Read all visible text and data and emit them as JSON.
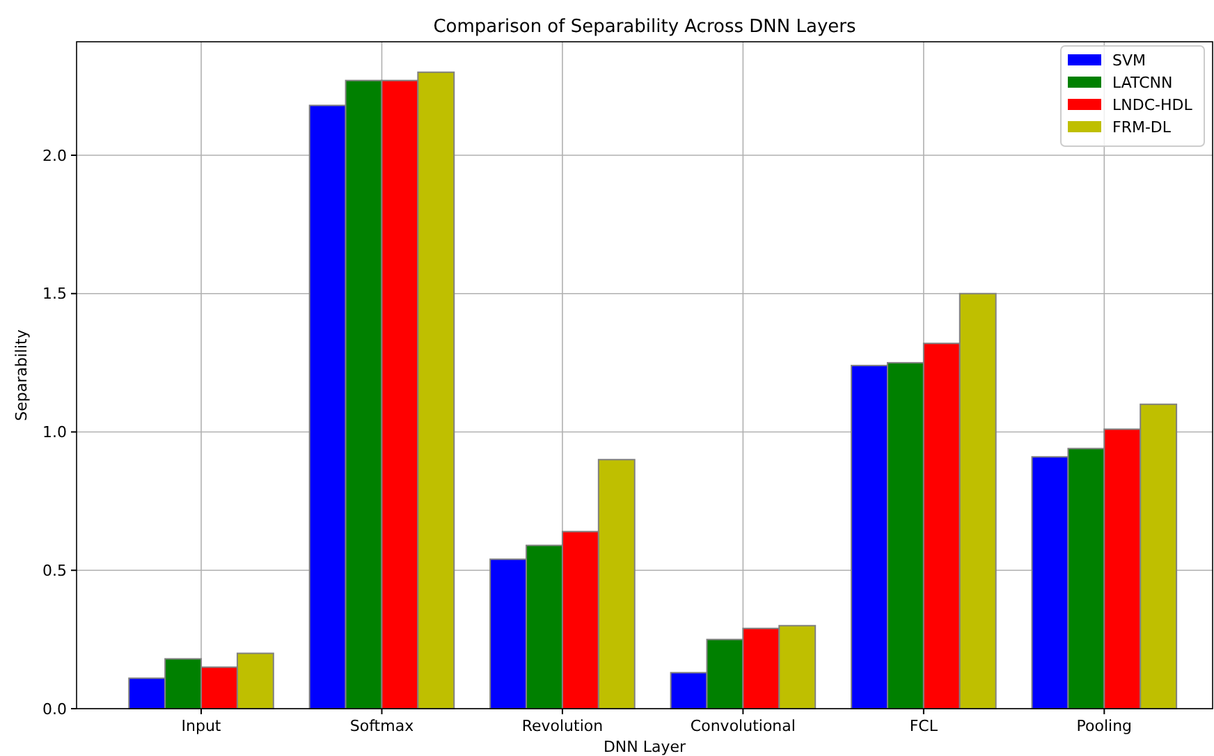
{
  "chart_data": {
    "type": "bar",
    "title": "Comparison of Separability Across DNN Layers",
    "xlabel": "DNN Layer",
    "ylabel": "Separability",
    "categories": [
      "Input",
      "Softmax",
      "Revolution",
      "Convolutional",
      "FCL",
      "Pooling"
    ],
    "series": [
      {
        "name": "SVM",
        "color": "#0000ff",
        "values": [
          0.11,
          2.18,
          0.54,
          0.13,
          1.24,
          0.91
        ]
      },
      {
        "name": "LATCNN",
        "color": "#008000",
        "values": [
          0.18,
          2.27,
          0.59,
          0.25,
          1.25,
          0.94
        ]
      },
      {
        "name": "LNDC-HDL",
        "color": "#ff0000",
        "values": [
          0.15,
          2.27,
          0.64,
          0.29,
          1.32,
          1.01
        ]
      },
      {
        "name": "FRM-DL",
        "color": "#bfbf00",
        "values": [
          0.2,
          2.3,
          0.9,
          0.3,
          1.5,
          1.1
        ]
      }
    ],
    "ylim": [
      0,
      2.41
    ],
    "yticks": [
      {
        "value": 0,
        "label": "0.0"
      },
      {
        "value": 0.5,
        "label": "0.5"
      },
      {
        "value": 1,
        "label": "1.0"
      },
      {
        "value": 1.5,
        "label": "1.5"
      },
      {
        "value": 2,
        "label": "2.0"
      }
    ],
    "grid": true,
    "legend": "top right"
  }
}
